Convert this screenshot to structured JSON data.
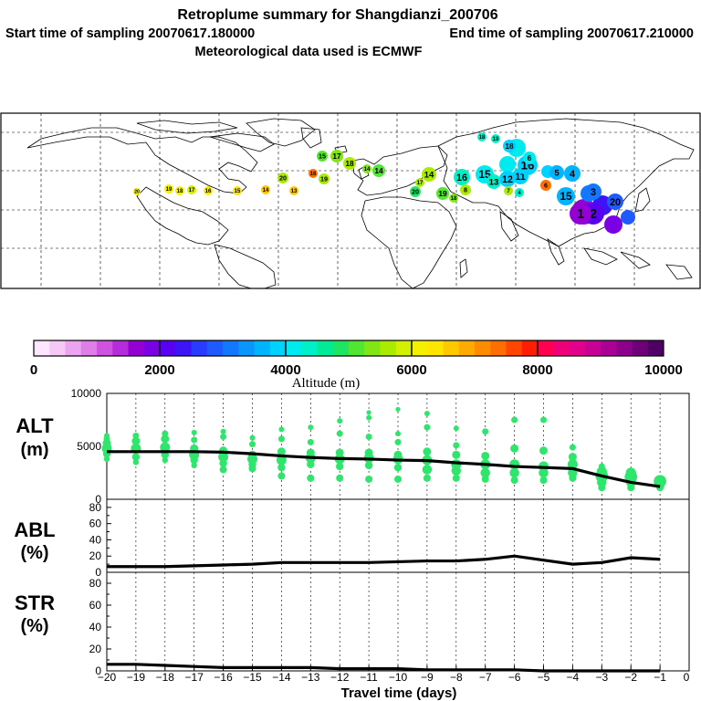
{
  "header": {
    "title": "Retroplume summary for Shangdianzi_200706",
    "start_label": "Start time of sampling 20070617.180000",
    "end_label": "End time of sampling 20070617.210000",
    "met_label": "Meteorological data used is ECMWF"
  },
  "colorbar": {
    "label": "Altitude (m)",
    "ticks": [
      "0",
      "2000",
      "4000",
      "6000",
      "8000",
      "10000"
    ],
    "colors": [
      "#ffe6ff",
      "#f5c8f5",
      "#eba5f0",
      "#df7ee8",
      "#cf52e0",
      "#b42cdc",
      "#9400d3",
      "#7a00e6",
      "#5a00f0",
      "#3c14f5",
      "#283cff",
      "#1e5aff",
      "#1478ff",
      "#0a96ff",
      "#00b4ff",
      "#00d2ff",
      "#00ebf0",
      "#00f0c8",
      "#00eb96",
      "#1ee664",
      "#50e632",
      "#82e614",
      "#aaeb00",
      "#d2f000",
      "#f5f000",
      "#ffe600",
      "#ffc800",
      "#ffaa00",
      "#ff8c00",
      "#ff6e00",
      "#ff4600",
      "#ff1e00",
      "#ff0050",
      "#f00078",
      "#e1008c",
      "#c80096",
      "#aa0096",
      "#8c008c",
      "#6e0078",
      "#500064"
    ]
  },
  "map": {
    "markers": [
      {
        "label": "20",
        "color": "#f5f000"
      },
      {
        "label": "19",
        "color": "#f5f000"
      },
      {
        "label": "18",
        "color": "#f5f000"
      },
      {
        "label": "17",
        "color": "#d2f000"
      },
      {
        "label": "16",
        "color": "#f5f000"
      },
      {
        "label": "15",
        "color": "#ffe600"
      },
      {
        "label": "14",
        "color": "#ffc800"
      },
      {
        "label": "13",
        "color": "#ffc800"
      },
      {
        "label": "20",
        "color": "#aaeb00"
      },
      {
        "label": "19",
        "color": "#aaeb00"
      },
      {
        "label": "18",
        "color": "#aaeb00"
      },
      {
        "label": "17",
        "color": "#82e614"
      },
      {
        "label": "16",
        "color": "#ff6e00"
      },
      {
        "label": "15",
        "color": "#50e632"
      },
      {
        "label": "14",
        "color": "#82e614"
      },
      {
        "label": "14",
        "color": "#50e632"
      },
      {
        "label": "14",
        "color": "#aaeb00"
      },
      {
        "label": "20",
        "color": "#1ee664"
      },
      {
        "label": "19",
        "color": "#50e632"
      },
      {
        "label": "18",
        "color": "#82e614"
      },
      {
        "label": "17",
        "color": "#aaeb00"
      },
      {
        "label": "16",
        "color": "#00f0c8"
      },
      {
        "label": "15",
        "color": "#00ebf0"
      },
      {
        "label": "13",
        "color": "#00f0c8"
      },
      {
        "label": "12",
        "color": "#00d2ff"
      },
      {
        "label": "11",
        "color": "#00d2ff"
      },
      {
        "label": "16",
        "color": "#00d2ff"
      },
      {
        "label": "18",
        "color": "#00d2ff"
      },
      {
        "label": "8",
        "color": "#aaeb00"
      },
      {
        "label": "7",
        "color": "#aaeb00"
      },
      {
        "label": "6",
        "color": "#ff6e00"
      },
      {
        "label": "5",
        "color": "#00b4ff"
      },
      {
        "label": "4",
        "color": "#00b4ff"
      },
      {
        "label": "15",
        "color": "#00b4ff"
      },
      {
        "label": "3",
        "color": "#1478ff"
      },
      {
        "label": "20",
        "color": "#1e5aff"
      },
      {
        "label": "2",
        "color": "#5a00f0"
      },
      {
        "label": "1",
        "color": "#9400d3"
      },
      {
        "label": "4",
        "color": "#00f0c8"
      },
      {
        "label": "19",
        "color": "#00f0c8"
      },
      {
        "label": "18",
        "color": "#00f0c8"
      },
      {
        "label": "6",
        "color": "#00ebf0"
      }
    ]
  },
  "chart_data": [
    {
      "type": "scatter",
      "panel": "ALT",
      "ylabel_main": "ALT",
      "ylabel_unit": "(m)",
      "ylim": [
        0,
        10000
      ],
      "yticks": [
        "10000",
        "5000",
        "0"
      ],
      "series": [
        {
          "name": "median altitude",
          "x": [
            -20,
            -19,
            -18,
            -17,
            -16,
            -15,
            -14,
            -13,
            -12,
            -11,
            -10,
            -9,
            -8,
            -7,
            -6,
            -5,
            -4,
            -3,
            -2,
            -1
          ],
          "values": [
            4500,
            4500,
            4500,
            4500,
            4450,
            4300,
            4100,
            3950,
            3850,
            3800,
            3700,
            3650,
            3450,
            3300,
            3100,
            3000,
            2900,
            2200,
            1600,
            1200
          ]
        }
      ],
      "clusters": [
        {
          "x": -20,
          "values": [
            3800,
            4300,
            4800,
            5300,
            5700,
            6000
          ]
        },
        {
          "x": -19,
          "values": [
            3500,
            4000,
            4800,
            5500,
            6000
          ]
        },
        {
          "x": -18,
          "values": [
            3700,
            4200,
            4900,
            5700,
            6200
          ]
        },
        {
          "x": -17,
          "values": [
            3200,
            3700,
            4200,
            4800,
            5600,
            6300
          ]
        },
        {
          "x": -16,
          "values": [
            2800,
            3400,
            4000,
            4600,
            5900,
            6400
          ]
        },
        {
          "x": -15,
          "values": [
            2900,
            3300,
            3800,
            4200,
            5200,
            5800
          ]
        },
        {
          "x": -14,
          "values": [
            2200,
            3000,
            3700,
            4500,
            5700,
            6600
          ]
        },
        {
          "x": -13,
          "values": [
            2000,
            3300,
            3900,
            4400,
            5400,
            6800
          ]
        },
        {
          "x": -12,
          "values": [
            2000,
            3100,
            3800,
            4400,
            6200,
            7400
          ]
        },
        {
          "x": -11,
          "values": [
            1900,
            3200,
            3900,
            4400,
            5900,
            7700,
            8200
          ]
        },
        {
          "x": -10,
          "values": [
            1900,
            3000,
            3800,
            4200,
            5400,
            6200,
            8500
          ]
        },
        {
          "x": -9,
          "values": [
            2000,
            2800,
            3700,
            4500,
            6800,
            8100
          ]
        },
        {
          "x": -8,
          "values": [
            2000,
            2700,
            3300,
            4200,
            5100,
            6700
          ]
        },
        {
          "x": -7,
          "values": [
            1900,
            2500,
            3300,
            4100,
            6400
          ]
        },
        {
          "x": -6,
          "values": [
            1800,
            2500,
            3300,
            4800,
            7500
          ]
        },
        {
          "x": -5,
          "values": [
            1800,
            2500,
            3100,
            4600,
            7500
          ]
        },
        {
          "x": -4,
          "values": [
            2000,
            2500,
            3300,
            4000,
            4900
          ]
        },
        {
          "x": -3,
          "values": [
            1100,
            1600,
            2200,
            2600,
            3100
          ]
        },
        {
          "x": -2,
          "values": [
            1100,
            1600,
            2100,
            2500
          ]
        },
        {
          "x": -1,
          "values": [
            1100,
            1400,
            1700
          ]
        }
      ],
      "point_color": "#2ee66b"
    },
    {
      "type": "line",
      "panel": "ABL",
      "ylabel_main": "ABL",
      "ylabel_unit": "(%)",
      "ylim": [
        0,
        90
      ],
      "yticks": [
        "80",
        "60",
        "40",
        "20",
        "0"
      ],
      "x": [
        -20,
        -19,
        -18,
        -17,
        -16,
        -15,
        -14,
        -13,
        -12,
        -11,
        -10,
        -9,
        -8,
        -7,
        -6,
        -5,
        -4,
        -3,
        -2,
        -1
      ],
      "values": [
        7,
        7,
        7,
        8,
        9,
        10,
        12,
        12,
        12,
        12,
        13,
        14,
        14,
        16,
        20,
        15,
        10,
        12,
        18,
        16
      ]
    },
    {
      "type": "line",
      "panel": "STR",
      "ylabel_main": "STR",
      "ylabel_unit": "(%)",
      "ylim": [
        0,
        90
      ],
      "yticks": [
        "80",
        "60",
        "40",
        "20",
        "0"
      ],
      "x": [
        -20,
        -19,
        -18,
        -17,
        -16,
        -15,
        -14,
        -13,
        -12,
        -11,
        -10,
        -9,
        -8,
        -7,
        -6,
        -5,
        -4,
        -3,
        -2,
        -1
      ],
      "values": [
        6,
        6,
        5,
        4,
        3,
        3,
        3,
        3,
        2,
        2,
        2,
        1,
        1,
        1,
        1,
        0,
        0,
        0,
        0,
        0
      ]
    }
  ],
  "xaxis": {
    "xlabel": "Travel time (days)",
    "ticks": [
      "−20",
      "−19",
      "−18",
      "−17",
      "−16",
      "−15",
      "−14",
      "−13",
      "−12",
      "−11",
      "−10",
      "−9",
      "−8",
      "−7",
      "−6",
      "−5",
      "−4",
      "−3",
      "−2",
      "−1",
      "0"
    ]
  }
}
